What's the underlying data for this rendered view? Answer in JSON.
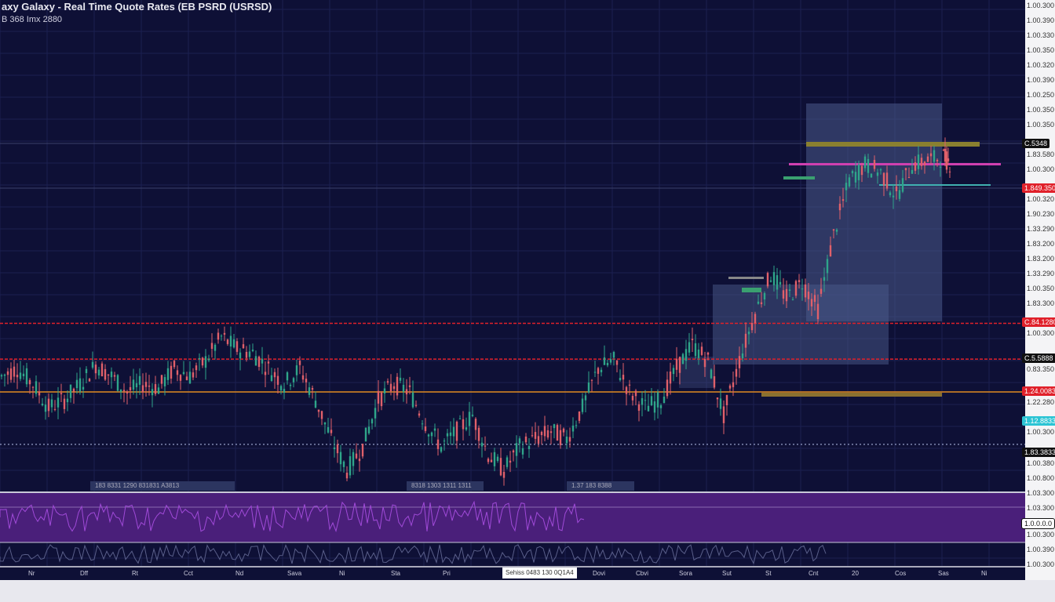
{
  "header": {
    "title": "axy Galaxy - Real Time Quote Rates (EB PSRD (USRSD)",
    "subtitle": "B 368 Imx 2880"
  },
  "price_axis": [
    "1.00.300",
    "1.00.390",
    "1.00.330",
    "1.00.350",
    "1.00.320",
    "1.00.390",
    "1.00.250",
    "1.00.350",
    "1.00.350",
    "1.83.580",
    "1.00.300",
    "1.00.320",
    "1.90.230",
    "1.33.290",
    "1.83.200",
    "1.83.200",
    "1.33.290",
    "1.00.350",
    "1.83.300",
    "1.00.300",
    "0.83.350",
    "1.22.280",
    "1.00.300",
    "1.00.380",
    "1.00.800",
    "1.03.300",
    "1.03.300",
    "1.00.300",
    "1.00.390",
    "1.00.300"
  ],
  "price_markers": [
    {
      "label": "C.5348",
      "color": "#111111"
    },
    {
      "label": "1.849.350",
      "color": "#e0202a"
    },
    {
      "label": "C.84.1280",
      "color": "#e0202a"
    },
    {
      "label": "C.5.5888",
      "color": "#111111"
    },
    {
      "label": "1.24.0083",
      "color": "#e0202a"
    },
    {
      "label": "1.12.8833",
      "color": "#2bc4d4"
    },
    {
      "label": "1.83.3833",
      "color": "#111111"
    },
    {
      "label": "1.0.0.0.0",
      "color": "#ffffff"
    }
  ],
  "panel_tags": [
    "183 8331 1290 831831 A3813",
    "8318 1303 1311 1311",
    "1.37 183 8388"
  ],
  "time_axis": {
    "labels": [
      "Nr",
      "Dff",
      "Rt",
      "Cct",
      "Nd",
      "Sava",
      "Ni",
      "Sta",
      "Pri",
      "Dovi",
      "Cbvi",
      "Sora",
      "Sut",
      "St",
      "Cnt",
      "20",
      "Cos",
      "Sas",
      "Ni"
    ],
    "cursor_label": "Sehiss 0483 130 0Q1A4"
  },
  "colors": {
    "up": "#2fa58a",
    "down": "#e0606a",
    "accent": "#e0202a",
    "indicator": "#a04ad8"
  },
  "chart_data": {
    "type": "candlestick",
    "title": "axy Galaxy - Real Time Quote Rates",
    "ylim": [
      0,
      100
    ],
    "x": [
      0,
      20,
      40,
      60,
      80,
      100,
      120,
      140,
      160,
      180,
      200,
      220,
      240,
      260,
      280,
      300,
      320,
      340,
      360,
      380,
      400,
      420,
      440,
      460,
      480,
      500,
      520,
      540,
      560,
      580,
      600,
      620,
      640,
      660,
      680,
      700,
      720,
      740,
      760,
      780,
      800,
      820,
      840,
      860,
      880,
      900,
      920,
      940,
      960,
      980,
      1000,
      1020,
      1040,
      1060,
      1080,
      1100,
      1120,
      1140,
      1160,
      1180,
      1200,
      1210
    ],
    "close": [
      23.2,
      24.8,
      21.6,
      16.8,
      18.4,
      21.6,
      25.6,
      23.2,
      20,
      21.6,
      20.8,
      24.8,
      23.2,
      26.4,
      31.2,
      28.8,
      28,
      24.8,
      21.6,
      24.8,
      18.4,
      10.4,
      4,
      8.8,
      18.4,
      21.6,
      20,
      13.6,
      8.8,
      12,
      15.2,
      7.2,
      4,
      8.8,
      10.4,
      12,
      10.4,
      16.8,
      24.8,
      26.4,
      20,
      16.8,
      18.4,
      24.8,
      29.6,
      26.4,
      15.2,
      26.4,
      36,
      44,
      39.2,
      42.4,
      36.8,
      52,
      63.2,
      66.4,
      64.8,
      60,
      66.4,
      67.2,
      68,
      66.4
    ],
    "levels": [
      {
        "value": 34,
        "style": "red-dashed"
      },
      {
        "value": 26.7,
        "style": "red-dashed"
      },
      {
        "value": 20,
        "style": "orange"
      },
      {
        "value": 9.3,
        "style": "gray-dotted"
      }
    ]
  }
}
